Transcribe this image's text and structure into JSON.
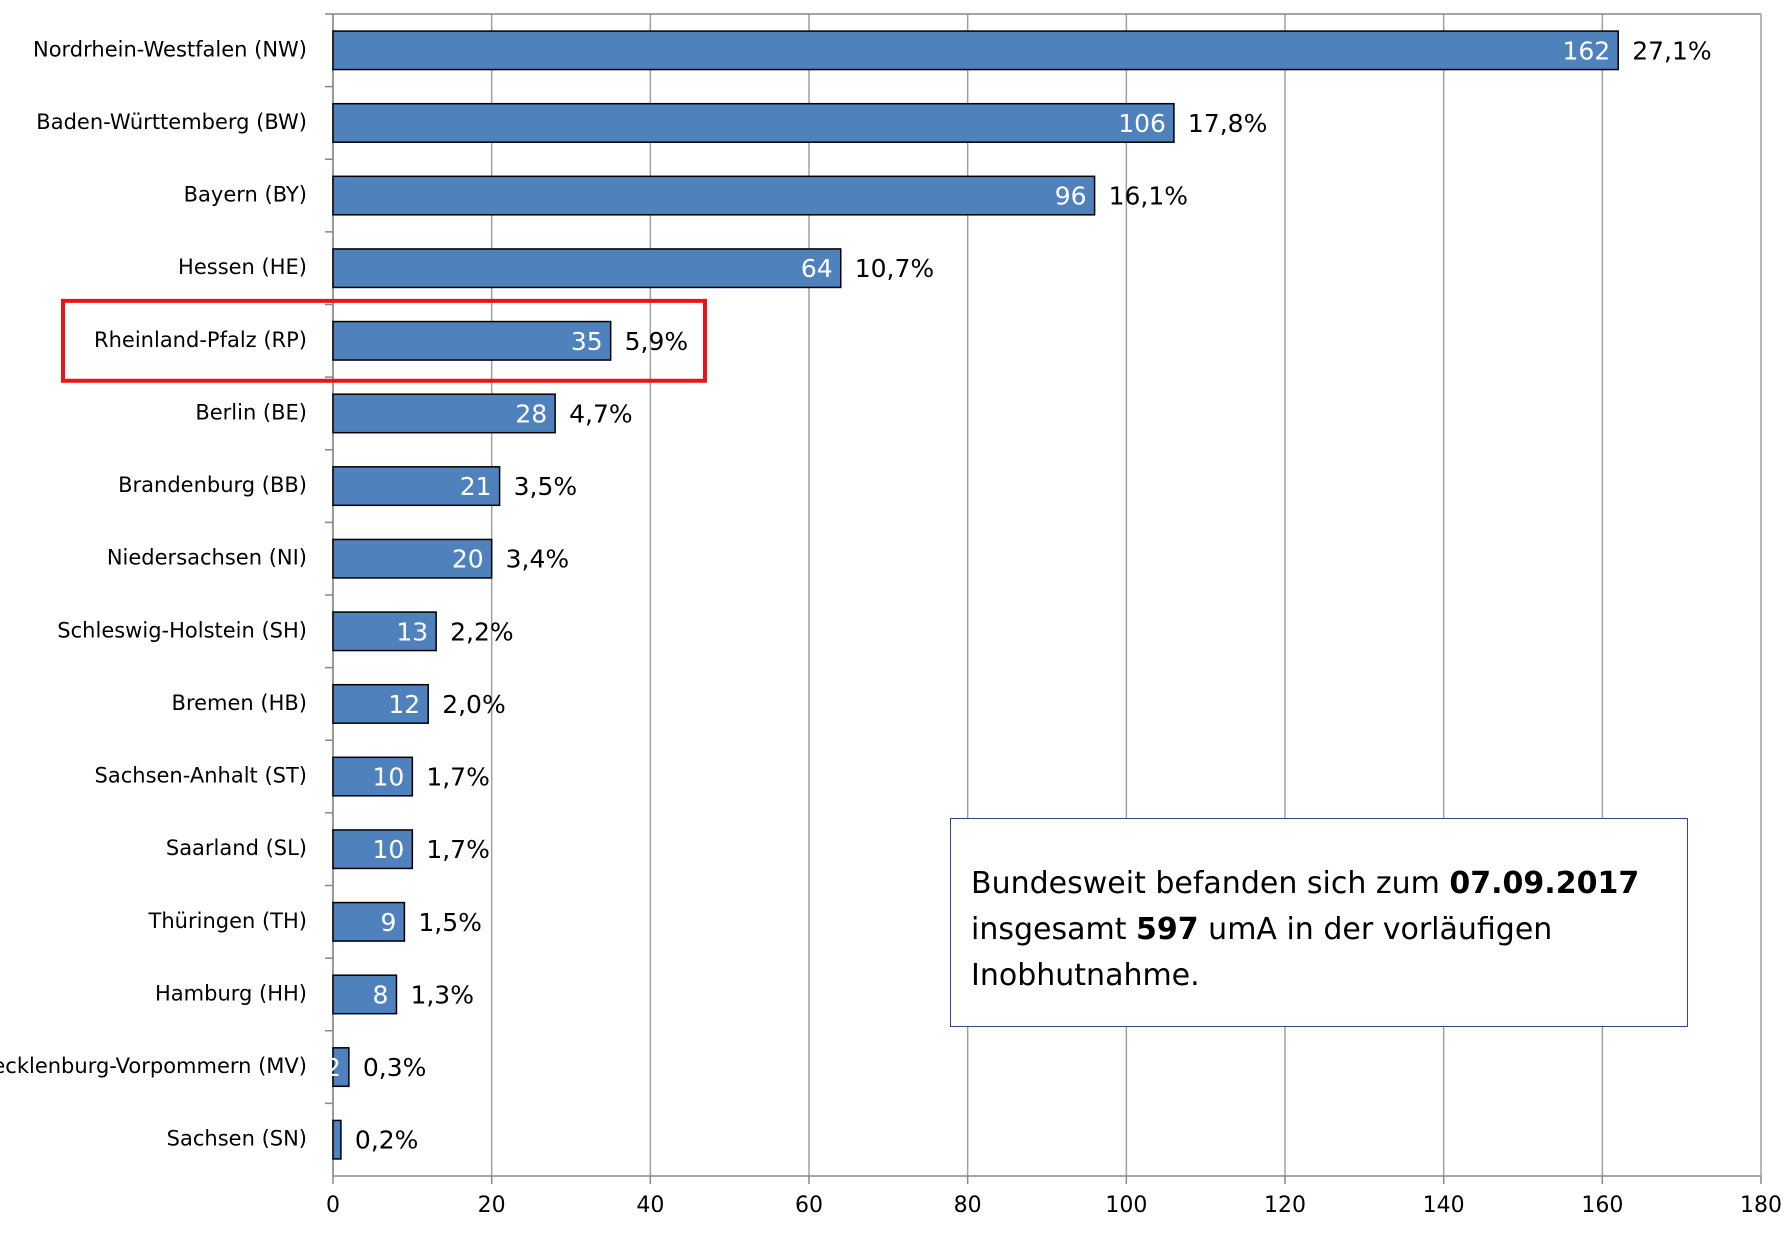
{
  "chart_data": {
    "type": "bar",
    "orientation": "horizontal",
    "categories": [
      "Nordrhein-Westfalen (NW)",
      "Baden-Württemberg (BW)",
      "Bayern (BY)",
      "Hessen (HE)",
      "Rheinland-Pfalz (RP)",
      "Berlin (BE)",
      "Brandenburg (BB)",
      "Niedersachsen (NI)",
      "Schleswig-Holstein (SH)",
      "Bremen (HB)",
      "Sachsen-Anhalt (ST)",
      "Saarland (SL)",
      "Thüringen (TH)",
      "Hamburg (HH)",
      "Mecklenburg-Vorpommern (MV)",
      "Sachsen (SN)"
    ],
    "values": [
      162,
      106,
      96,
      64,
      35,
      28,
      21,
      20,
      13,
      12,
      10,
      10,
      9,
      8,
      2,
      1
    ],
    "share_labels": [
      "27,1%",
      "17,8%",
      "16,1%",
      "10,7%",
      "5,9%",
      "4,7%",
      "3,5%",
      "3,4%",
      "2,2%",
      "2,0%",
      "1,7%",
      "1,7%",
      "1,5%",
      "1,3%",
      "0,3%",
      "0,2%"
    ],
    "color": "#4f81bd",
    "highlight": 4,
    "highlight_color": "#e8141b",
    "xlim": [
      0,
      180
    ],
    "xticks": [
      0,
      20,
      40,
      60,
      80,
      100,
      120,
      140,
      160,
      180
    ],
    "grid": true,
    "annotation": [
      "Bundesweit befanden sich zum ",
      "07.09.2017",
      " insgesamt ",
      "597",
      " umA in der vorläufigen Inobhutnahme."
    ]
  }
}
